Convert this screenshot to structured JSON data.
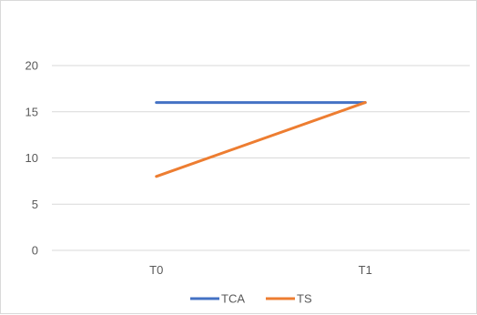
{
  "chart_data": {
    "type": "line",
    "categories": [
      "T0",
      "T1"
    ],
    "series": [
      {
        "name": "TCA",
        "values": [
          16,
          16
        ],
        "color": "#4472C4"
      },
      {
        "name": "TS",
        "values": [
          8,
          16
        ],
        "color": "#ED7D31"
      }
    ],
    "ylim": [
      0,
      20
    ],
    "yticks": [
      0,
      5,
      10,
      15,
      20
    ],
    "ytick_labels": [
      "0",
      "5",
      "10",
      "15",
      "20"
    ],
    "grid": true,
    "grid_color": "#d9d9d9",
    "legend_position": "bottom",
    "title": "",
    "xlabel": "",
    "ylabel": ""
  }
}
